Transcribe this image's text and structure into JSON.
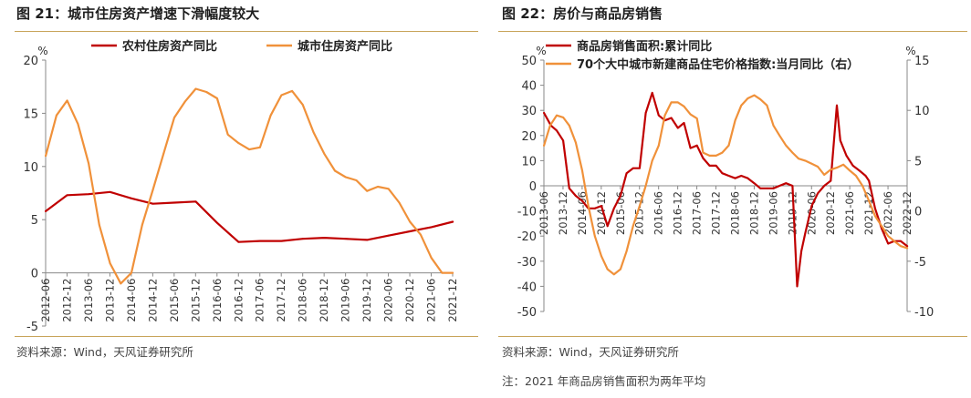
{
  "colors": {
    "rural": "#c00000",
    "urban": "#f0913a",
    "axis": "#888888",
    "rule": "#c8a45a"
  },
  "left": {
    "title": "图 21：城市住房资产增速下滑幅度较大",
    "source": "资料来源：Wind，天风证券研究所"
  },
  "right": {
    "title": "图 22：房价与商品房销售",
    "source": "资料来源：Wind，天风证券研究所",
    "note": "注：2021 年商品房销售面积为两年平均"
  },
  "chart_data": [
    {
      "type": "line",
      "title": "图 21：城市住房资产增速下滑幅度较大",
      "y_unit": "%",
      "ylim": [
        -5,
        20
      ],
      "yticks": [
        -5,
        0,
        5,
        10,
        15,
        20
      ],
      "x_ticklabels": [
        "2012-06",
        "2012-12",
        "2013-06",
        "2013-12",
        "2014-06",
        "2014-12",
        "2015-06",
        "2015-12",
        "2016-06",
        "2016-12",
        "2017-06",
        "2017-12",
        "2018-06",
        "2018-12",
        "2019-06",
        "2019-12",
        "2020-06",
        "2020-12",
        "2021-06",
        "2021-12"
      ],
      "x_range": [
        2012.417,
        2021.917
      ],
      "legend_position": "top-center",
      "series": [
        {
          "name": "农村住房资产同比",
          "color": "#c00000",
          "axis": "left",
          "points": [
            [
              2012.42,
              5.8
            ],
            [
              2012.92,
              7.3
            ],
            [
              2013.42,
              7.4
            ],
            [
              2013.92,
              7.6
            ],
            [
              2014.42,
              7.0
            ],
            [
              2014.92,
              6.5
            ],
            [
              2015.42,
              6.6
            ],
            [
              2015.92,
              6.7
            ],
            [
              2016.42,
              4.7
            ],
            [
              2016.92,
              2.9
            ],
            [
              2017.42,
              3.0
            ],
            [
              2017.92,
              3.0
            ],
            [
              2018.42,
              3.2
            ],
            [
              2018.92,
              3.3
            ],
            [
              2019.42,
              3.2
            ],
            [
              2019.92,
              3.1
            ],
            [
              2020.42,
              3.5
            ],
            [
              2020.92,
              3.9
            ],
            [
              2021.42,
              4.3
            ],
            [
              2021.92,
              4.8
            ]
          ]
        },
        {
          "name": "城市住房资产同比",
          "color": "#f0913a",
          "axis": "left",
          "points": [
            [
              2012.42,
              11.0
            ],
            [
              2012.67,
              14.8
            ],
            [
              2012.92,
              16.2
            ],
            [
              2013.17,
              14.0
            ],
            [
              2013.42,
              10.3
            ],
            [
              2013.67,
              4.5
            ],
            [
              2013.92,
              0.9
            ],
            [
              2014.17,
              -1.0
            ],
            [
              2014.42,
              0.0
            ],
            [
              2014.67,
              4.5
            ],
            [
              2014.92,
              7.8
            ],
            [
              2015.17,
              11.2
            ],
            [
              2015.42,
              14.6
            ],
            [
              2015.67,
              16.1
            ],
            [
              2015.92,
              17.3
            ],
            [
              2016.17,
              17.0
            ],
            [
              2016.42,
              16.4
            ],
            [
              2016.67,
              13.0
            ],
            [
              2016.92,
              12.2
            ],
            [
              2017.17,
              11.6
            ],
            [
              2017.42,
              11.8
            ],
            [
              2017.67,
              14.8
            ],
            [
              2017.92,
              16.7
            ],
            [
              2018.17,
              17.1
            ],
            [
              2018.42,
              15.8
            ],
            [
              2018.67,
              13.2
            ],
            [
              2018.92,
              11.2
            ],
            [
              2019.17,
              9.6
            ],
            [
              2019.42,
              9.0
            ],
            [
              2019.67,
              8.7
            ],
            [
              2019.92,
              7.7
            ],
            [
              2020.17,
              8.1
            ],
            [
              2020.42,
              7.9
            ],
            [
              2020.67,
              6.6
            ],
            [
              2020.92,
              4.8
            ],
            [
              2021.17,
              3.6
            ],
            [
              2021.42,
              1.4
            ],
            [
              2021.67,
              0.0
            ],
            [
              2021.92,
              0.0
            ]
          ]
        }
      ]
    },
    {
      "type": "line",
      "title": "图 22：房价与商品房销售",
      "y_unit": "%",
      "y2_unit": "%",
      "ylim": [
        -50,
        50
      ],
      "yticks": [
        -50,
        -40,
        -30,
        -20,
        -10,
        0,
        10,
        20,
        30,
        40,
        50
      ],
      "y2lim": [
        -10,
        15
      ],
      "y2ticks": [
        -10,
        -5,
        0,
        5,
        10,
        15
      ],
      "x_ticklabels": [
        "2013-06",
        "2013-12",
        "2014-06",
        "2014-12",
        "2015-06",
        "2015-12",
        "2016-06",
        "2016-12",
        "2017-06",
        "2017-12",
        "2018-06",
        "2018-12",
        "2019-06",
        "2019-12",
        "2020-06",
        "2020-12",
        "2021-06",
        "2021-12",
        "2022-06",
        "2022-12"
      ],
      "x_range": [
        2013.417,
        2022.917
      ],
      "legend_position": "top-left",
      "series": [
        {
          "name": "商品房销售面积:累计同比",
          "color": "#c00000",
          "axis": "left",
          "points": [
            [
              2013.42,
              29
            ],
            [
              2013.6,
              24
            ],
            [
              2013.75,
              22
            ],
            [
              2013.92,
              18
            ],
            [
              2014.08,
              -1
            ],
            [
              2014.25,
              -4
            ],
            [
              2014.42,
              -6
            ],
            [
              2014.58,
              -9
            ],
            [
              2014.75,
              -9
            ],
            [
              2014.92,
              -8
            ],
            [
              2015.08,
              -16
            ],
            [
              2015.25,
              -9
            ],
            [
              2015.42,
              -4
            ],
            [
              2015.58,
              5
            ],
            [
              2015.75,
              7
            ],
            [
              2015.92,
              7
            ],
            [
              2016.08,
              29
            ],
            [
              2016.25,
              37
            ],
            [
              2016.42,
              28
            ],
            [
              2016.58,
              26
            ],
            [
              2016.75,
              27
            ],
            [
              2016.92,
              23
            ],
            [
              2017.08,
              25
            ],
            [
              2017.25,
              15
            ],
            [
              2017.42,
              16
            ],
            [
              2017.58,
              11
            ],
            [
              2017.75,
              8
            ],
            [
              2017.92,
              8
            ],
            [
              2018.08,
              5
            ],
            [
              2018.25,
              4
            ],
            [
              2018.42,
              3
            ],
            [
              2018.58,
              4
            ],
            [
              2018.75,
              3
            ],
            [
              2018.92,
              1
            ],
            [
              2019.08,
              -1
            ],
            [
              2019.25,
              -1
            ],
            [
              2019.42,
              -1
            ],
            [
              2019.58,
              0
            ],
            [
              2019.75,
              1
            ],
            [
              2019.92,
              0
            ],
            [
              2020.04,
              -40
            ],
            [
              2020.15,
              -26
            ],
            [
              2020.25,
              -19
            ],
            [
              2020.42,
              -8
            ],
            [
              2020.58,
              -3
            ],
            [
              2020.75,
              0
            ],
            [
              2020.92,
              2
            ],
            [
              2021.08,
              32
            ],
            [
              2021.17,
              18
            ],
            [
              2021.33,
              12
            ],
            [
              2021.5,
              8
            ],
            [
              2021.67,
              6
            ],
            [
              2021.83,
              4
            ],
            [
              2021.92,
              2
            ],
            [
              2022.08,
              -9
            ],
            [
              2022.25,
              -17
            ],
            [
              2022.42,
              -23
            ],
            [
              2022.58,
              -22
            ],
            [
              2022.75,
              -22
            ],
            [
              2022.92,
              -24
            ]
          ]
        },
        {
          "name": "70个大中城市新建商品住宅价格指数:当月同比（右）",
          "color": "#f0913a",
          "axis": "right",
          "points": [
            [
              2013.42,
              6.5
            ],
            [
              2013.58,
              8.5
            ],
            [
              2013.75,
              9.5
            ],
            [
              2013.92,
              9.3
            ],
            [
              2014.08,
              8.5
            ],
            [
              2014.25,
              6.8
            ],
            [
              2014.42,
              4.0
            ],
            [
              2014.58,
              0.5
            ],
            [
              2014.75,
              -2.5
            ],
            [
              2014.92,
              -4.5
            ],
            [
              2015.08,
              -5.8
            ],
            [
              2015.25,
              -6.3
            ],
            [
              2015.42,
              -5.8
            ],
            [
              2015.58,
              -4.0
            ],
            [
              2015.75,
              -1.5
            ],
            [
              2015.92,
              0.5
            ],
            [
              2016.08,
              2.5
            ],
            [
              2016.25,
              5.0
            ],
            [
              2016.42,
              6.5
            ],
            [
              2016.58,
              9.5
            ],
            [
              2016.75,
              10.8
            ],
            [
              2016.92,
              10.8
            ],
            [
              2017.08,
              10.4
            ],
            [
              2017.25,
              9.6
            ],
            [
              2017.42,
              9.2
            ],
            [
              2017.58,
              5.8
            ],
            [
              2017.75,
              5.5
            ],
            [
              2017.92,
              5.5
            ],
            [
              2018.08,
              5.8
            ],
            [
              2018.25,
              6.5
            ],
            [
              2018.42,
              9.0
            ],
            [
              2018.58,
              10.5
            ],
            [
              2018.75,
              11.2
            ],
            [
              2018.92,
              11.5
            ],
            [
              2019.08,
              11.1
            ],
            [
              2019.25,
              10.5
            ],
            [
              2019.42,
              8.5
            ],
            [
              2019.58,
              7.5
            ],
            [
              2019.75,
              6.5
            ],
            [
              2019.92,
              5.8
            ],
            [
              2020.08,
              5.2
            ],
            [
              2020.25,
              5.0
            ],
            [
              2020.42,
              4.7
            ],
            [
              2020.58,
              4.4
            ],
            [
              2020.75,
              3.6
            ],
            [
              2020.92,
              4.1
            ],
            [
              2021.08,
              4.3
            ],
            [
              2021.25,
              4.6
            ],
            [
              2021.42,
              4.0
            ],
            [
              2021.58,
              3.5
            ],
            [
              2021.75,
              2.5
            ],
            [
              2021.92,
              1.0
            ],
            [
              2022.08,
              -0.5
            ],
            [
              2022.25,
              -1.5
            ],
            [
              2022.42,
              -2.5
            ],
            [
              2022.58,
              -3.0
            ],
            [
              2022.75,
              -3.5
            ],
            [
              2022.92,
              -3.7
            ]
          ]
        }
      ]
    }
  ]
}
